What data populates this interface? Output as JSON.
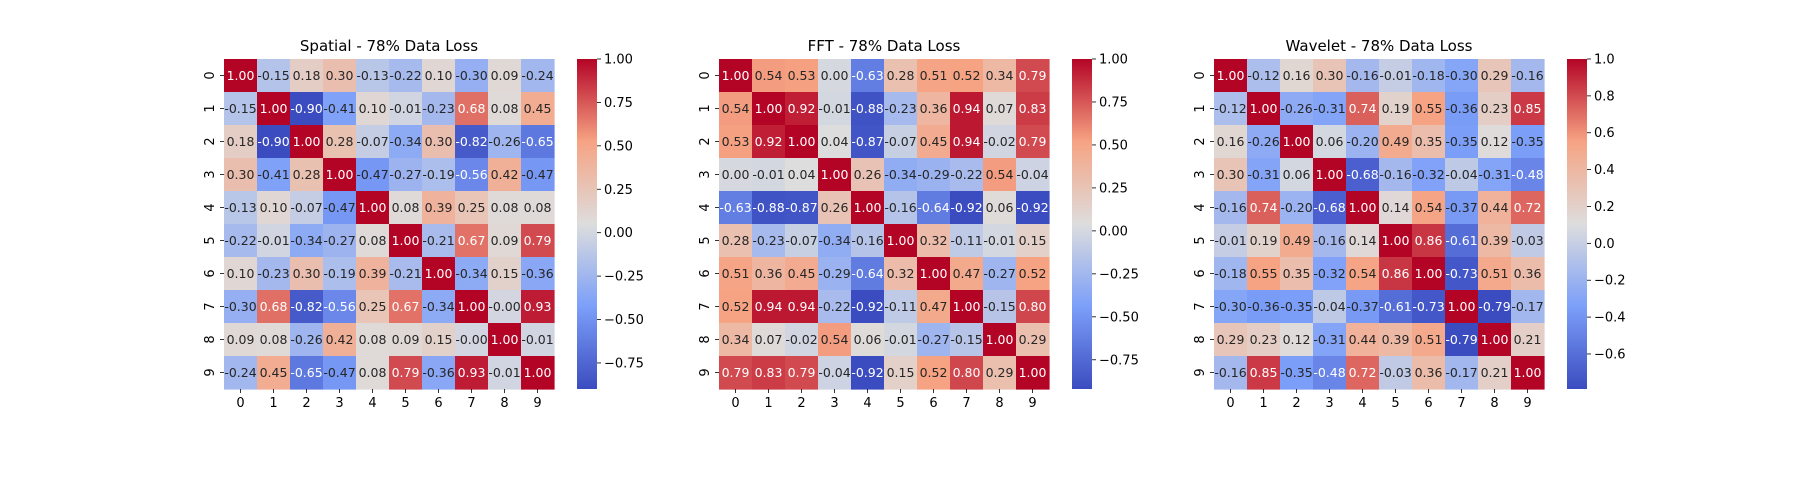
{
  "chart_data": [
    {
      "type": "heatmap",
      "title": "Spatial - 78% Data Loss",
      "x_ticks": [
        "0",
        "1",
        "2",
        "3",
        "4",
        "5",
        "6",
        "7",
        "8",
        "9"
      ],
      "y_ticks": [
        "0",
        "1",
        "2",
        "3",
        "4",
        "5",
        "6",
        "7",
        "8",
        "9"
      ],
      "colorbar": {
        "range": [
          -0.9,
          1.0
        ],
        "ticks": [
          -0.75,
          -0.5,
          -0.25,
          0.0,
          0.25,
          0.5,
          0.75,
          1.0
        ],
        "tick_labels": [
          "−0.75",
          "−0.50",
          "−0.25",
          "0.00",
          "0.25",
          "0.50",
          "0.75",
          "1.00"
        ]
      },
      "matrix": [
        [
          "1.00",
          "-0.15",
          "0.18",
          "0.30",
          "-0.13",
          "-0.22",
          "0.10",
          "-0.30",
          "0.09",
          "-0.24"
        ],
        [
          "-0.15",
          "1.00",
          "-0.90",
          "-0.41",
          "0.10",
          "-0.01",
          "-0.23",
          "0.68",
          "0.08",
          "0.45"
        ],
        [
          "0.18",
          "-0.90",
          "1.00",
          "0.28",
          "-0.07",
          "-0.34",
          "0.30",
          "-0.82",
          "-0.26",
          "-0.65"
        ],
        [
          "0.30",
          "-0.41",
          "0.28",
          "1.00",
          "-0.47",
          "-0.27",
          "-0.19",
          "-0.56",
          "0.42",
          "-0.47"
        ],
        [
          "-0.13",
          "0.10",
          "-0.07",
          "-0.47",
          "1.00",
          "0.08",
          "0.39",
          "0.25",
          "0.08",
          "0.08"
        ],
        [
          "-0.22",
          "-0.01",
          "-0.34",
          "-0.27",
          "0.08",
          "1.00",
          "-0.21",
          "0.67",
          "0.09",
          "0.79"
        ],
        [
          "0.10",
          "-0.23",
          "0.30",
          "-0.19",
          "0.39",
          "-0.21",
          "1.00",
          "-0.34",
          "0.15",
          "-0.36"
        ],
        [
          "-0.30",
          "0.68",
          "-0.82",
          "-0.56",
          "0.25",
          "0.67",
          "-0.34",
          "1.00",
          "-0.00",
          "0.93"
        ],
        [
          "0.09",
          "0.08",
          "-0.26",
          "0.42",
          "0.08",
          "0.09",
          "0.15",
          "-0.00",
          "1.00",
          "-0.01"
        ],
        [
          "-0.24",
          "0.45",
          "-0.65",
          "-0.47",
          "0.08",
          "0.79",
          "-0.36",
          "0.93",
          "-0.01",
          "1.00"
        ]
      ]
    },
    {
      "type": "heatmap",
      "title": "FFT - 78% Data Loss",
      "x_ticks": [
        "0",
        "1",
        "2",
        "3",
        "4",
        "5",
        "6",
        "7",
        "8",
        "9"
      ],
      "y_ticks": [
        "0",
        "1",
        "2",
        "3",
        "4",
        "5",
        "6",
        "7",
        "8",
        "9"
      ],
      "colorbar": {
        "range": [
          -0.92,
          1.0
        ],
        "ticks": [
          -0.75,
          -0.5,
          -0.25,
          0.0,
          0.25,
          0.5,
          0.75,
          1.0
        ],
        "tick_labels": [
          "−0.75",
          "−0.50",
          "−0.25",
          "0.00",
          "0.25",
          "0.50",
          "0.75",
          "1.00"
        ]
      },
      "matrix": [
        [
          "1.00",
          "0.54",
          "0.53",
          "0.00",
          "-0.63",
          "0.28",
          "0.51",
          "0.52",
          "0.34",
          "0.79"
        ],
        [
          "0.54",
          "1.00",
          "0.92",
          "-0.01",
          "-0.88",
          "-0.23",
          "0.36",
          "0.94",
          "0.07",
          "0.83"
        ],
        [
          "0.53",
          "0.92",
          "1.00",
          "0.04",
          "-0.87",
          "-0.07",
          "0.45",
          "0.94",
          "-0.02",
          "0.79"
        ],
        [
          "0.00",
          "-0.01",
          "0.04",
          "1.00",
          "0.26",
          "-0.34",
          "-0.29",
          "-0.22",
          "0.54",
          "-0.04"
        ],
        [
          "-0.63",
          "-0.88",
          "-0.87",
          "0.26",
          "1.00",
          "-0.16",
          "-0.64",
          "-0.92",
          "0.06",
          "-0.92"
        ],
        [
          "0.28",
          "-0.23",
          "-0.07",
          "-0.34",
          "-0.16",
          "1.00",
          "0.32",
          "-0.11",
          "-0.01",
          "0.15"
        ],
        [
          "0.51",
          "0.36",
          "0.45",
          "-0.29",
          "-0.64",
          "0.32",
          "1.00",
          "0.47",
          "-0.27",
          "0.52"
        ],
        [
          "0.52",
          "0.94",
          "0.94",
          "-0.22",
          "-0.92",
          "-0.11",
          "0.47",
          "1.00",
          "-0.15",
          "0.80"
        ],
        [
          "0.34",
          "0.07",
          "-0.02",
          "0.54",
          "0.06",
          "-0.01",
          "-0.27",
          "-0.15",
          "1.00",
          "0.29"
        ],
        [
          "0.79",
          "0.83",
          "0.79",
          "-0.04",
          "-0.92",
          "0.15",
          "0.52",
          "0.80",
          "0.29",
          "1.00"
        ]
      ]
    },
    {
      "type": "heatmap",
      "title": "Wavelet - 78% Data Loss",
      "x_ticks": [
        "0",
        "1",
        "2",
        "3",
        "4",
        "5",
        "6",
        "7",
        "8",
        "9"
      ],
      "y_ticks": [
        "0",
        "1",
        "2",
        "3",
        "4",
        "5",
        "6",
        "7",
        "8",
        "9"
      ],
      "colorbar": {
        "range": [
          -0.79,
          1.0
        ],
        "ticks": [
          -0.6,
          -0.4,
          -0.2,
          0.0,
          0.2,
          0.4,
          0.6,
          0.8,
          1.0
        ],
        "tick_labels": [
          "−0.6",
          "−0.4",
          "−0.2",
          "0.0",
          "0.2",
          "0.4",
          "0.6",
          "0.8",
          "1.0"
        ]
      },
      "matrix": [
        [
          "1.00",
          "-0.12",
          "0.16",
          "0.30",
          "-0.16",
          "-0.01",
          "-0.18",
          "-0.30",
          "0.29",
          "-0.16"
        ],
        [
          "-0.12",
          "1.00",
          "-0.26",
          "-0.31",
          "0.74",
          "0.19",
          "0.55",
          "-0.36",
          "0.23",
          "0.85"
        ],
        [
          "0.16",
          "-0.26",
          "1.00",
          "0.06",
          "-0.20",
          "0.49",
          "0.35",
          "-0.35",
          "0.12",
          "-0.35"
        ],
        [
          "0.30",
          "-0.31",
          "0.06",
          "1.00",
          "-0.68",
          "-0.16",
          "-0.32",
          "-0.04",
          "-0.31",
          "-0.48"
        ],
        [
          "-0.16",
          "0.74",
          "-0.20",
          "-0.68",
          "1.00",
          "0.14",
          "0.54",
          "-0.37",
          "0.44",
          "0.72"
        ],
        [
          "-0.01",
          "0.19",
          "0.49",
          "-0.16",
          "0.14",
          "1.00",
          "0.86",
          "-0.61",
          "0.39",
          "-0.03"
        ],
        [
          "-0.18",
          "0.55",
          "0.35",
          "-0.32",
          "0.54",
          "0.86",
          "1.00",
          "-0.73",
          "0.51",
          "0.36"
        ],
        [
          "-0.30",
          "-0.36",
          "-0.35",
          "-0.04",
          "-0.37",
          "-0.61",
          "-0.73",
          "1.00",
          "-0.79",
          "-0.17"
        ],
        [
          "0.29",
          "0.23",
          "0.12",
          "-0.31",
          "0.44",
          "0.39",
          "0.51",
          "-0.79",
          "1.00",
          "0.21"
        ],
        [
          "-0.16",
          "0.85",
          "-0.35",
          "-0.48",
          "0.72",
          "-0.03",
          "0.36",
          "-0.17",
          "0.21",
          "1.00"
        ]
      ]
    }
  ]
}
